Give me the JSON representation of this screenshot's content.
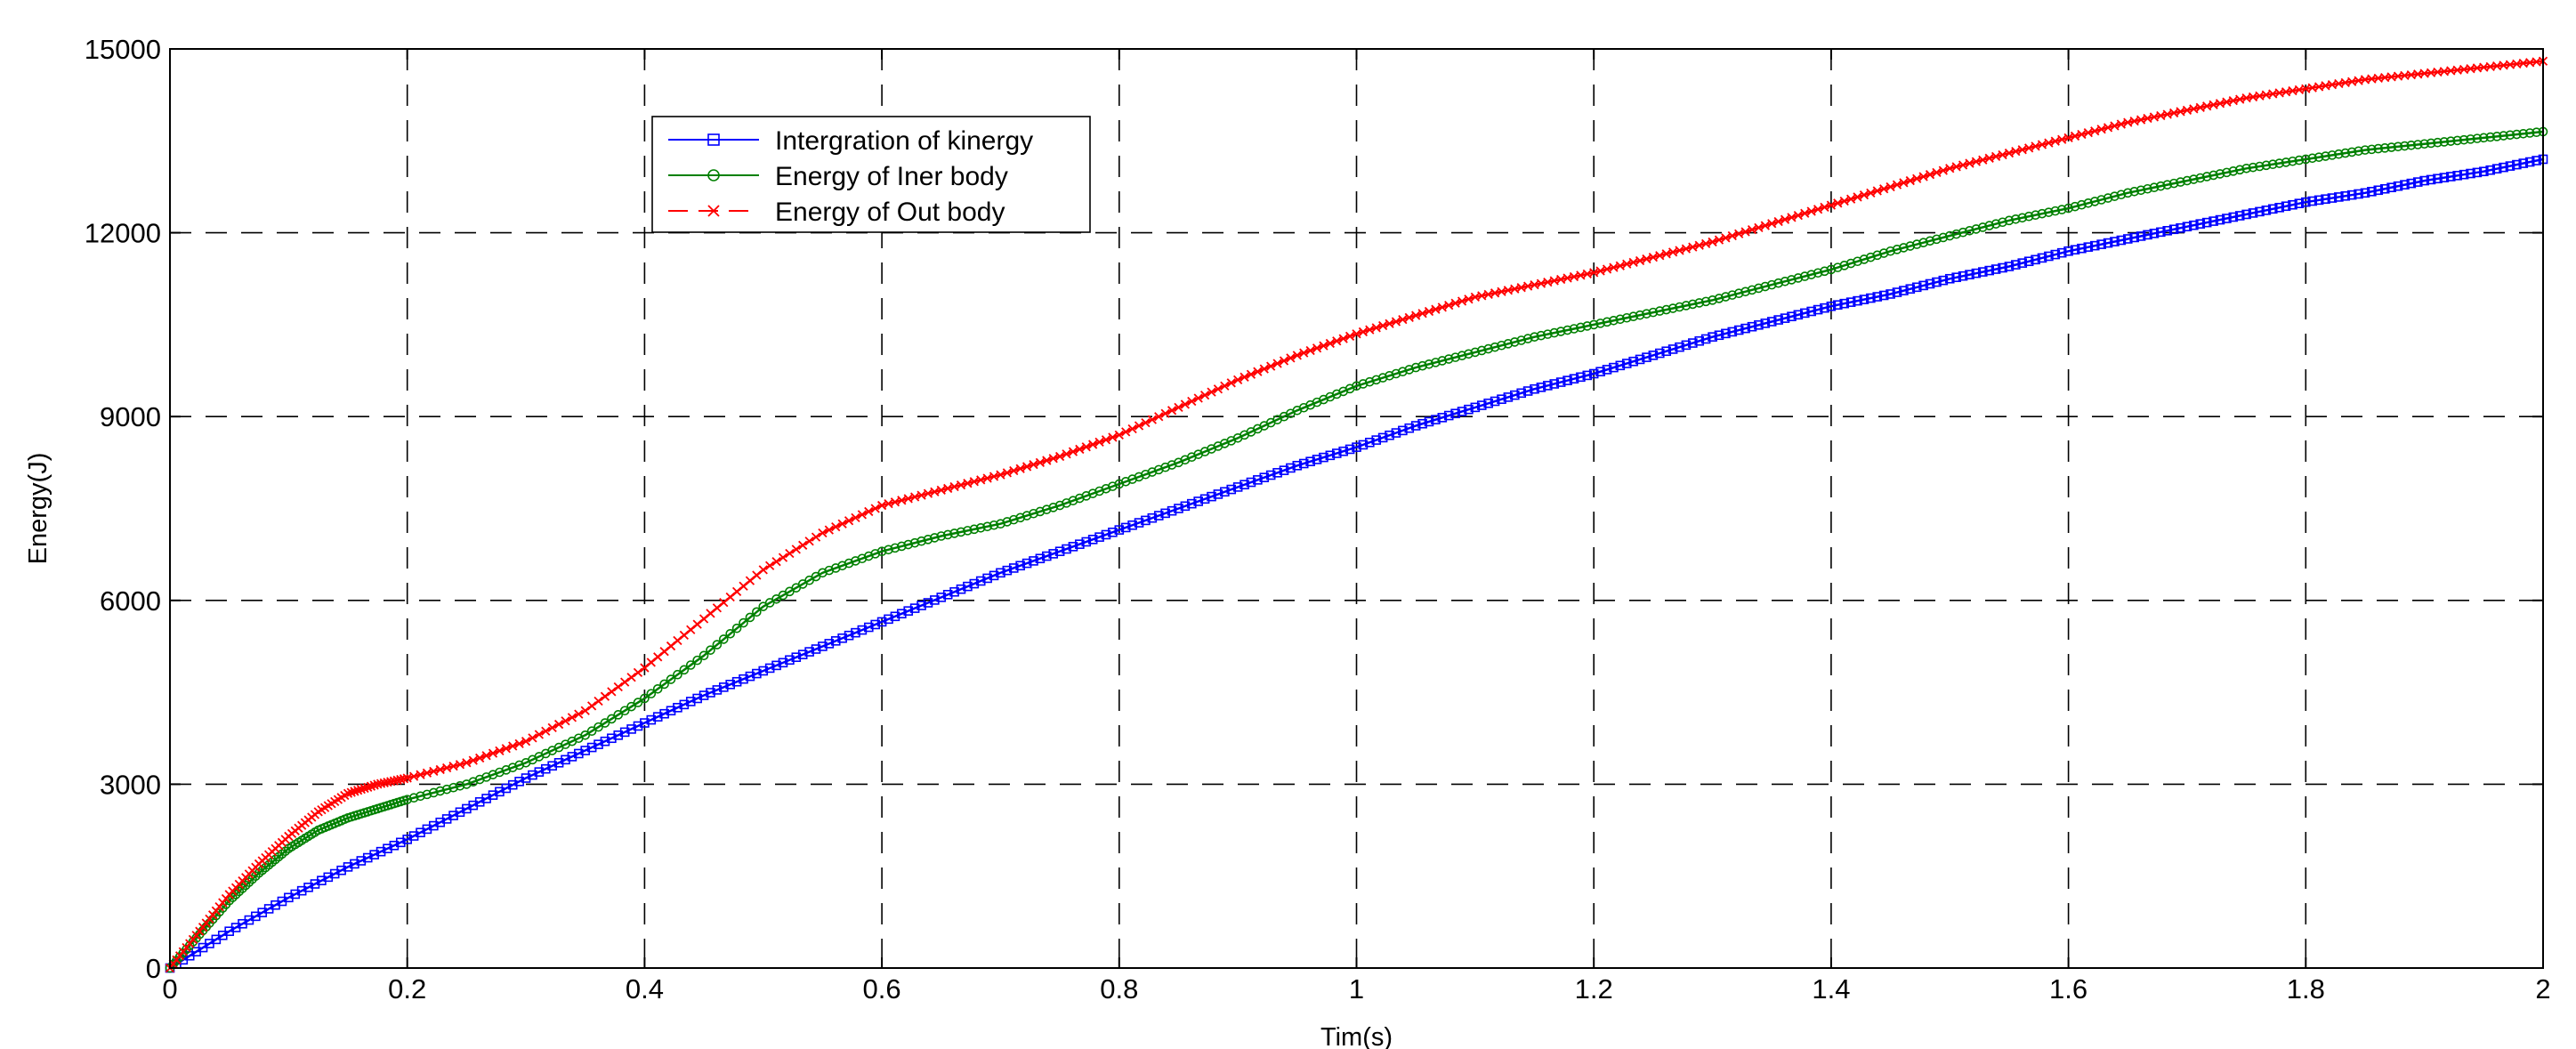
{
  "chart_data": {
    "type": "line",
    "title": "",
    "xlabel": "Tim(s)",
    "ylabel": "Energy(J)",
    "xlim": [
      0,
      2
    ],
    "ylim": [
      0,
      15000
    ],
    "x_ticks": [
      0,
      0.2,
      0.4,
      0.6,
      0.8,
      1,
      1.2,
      1.4,
      1.6,
      1.8,
      2
    ],
    "x_tick_labels": [
      "0",
      "0.2",
      "0.4",
      "0.6",
      "0.8",
      "1",
      "1.2",
      "1.4",
      "1.6",
      "1.8",
      "2"
    ],
    "y_ticks": [
      0,
      3000,
      6000,
      9000,
      12000,
      15000
    ],
    "y_tick_labels": [
      "0",
      "3000",
      "6000",
      "9000",
      "12000",
      "15000"
    ],
    "grid": true,
    "legend_position": "top-left",
    "series": [
      {
        "name": "Intergration of kinergy",
        "color": "#0000ff",
        "line_style": "solid",
        "marker": "square",
        "x": [
          0,
          0.05,
          0.1,
          0.15,
          0.2,
          0.25,
          0.3,
          0.35,
          0.4,
          0.45,
          0.5,
          0.55,
          0.6,
          0.65,
          0.7,
          0.75,
          0.8,
          0.85,
          0.9,
          0.95,
          1.0,
          1.05,
          1.1,
          1.15,
          1.2,
          1.25,
          1.3,
          1.35,
          1.4,
          1.45,
          1.5,
          1.55,
          1.6,
          1.65,
          1.7,
          1.75,
          1.8,
          1.85,
          1.9,
          1.95,
          2.0
        ],
        "y": [
          0,
          600,
          1150,
          1650,
          2100,
          2600,
          3100,
          3550,
          4000,
          4450,
          4850,
          5250,
          5650,
          6050,
          6450,
          6800,
          7150,
          7500,
          7850,
          8200,
          8500,
          8850,
          9150,
          9450,
          9700,
          10000,
          10300,
          10550,
          10800,
          11000,
          11250,
          11450,
          11700,
          11900,
          12100,
          12300,
          12500,
          12650,
          12850,
          13000,
          13200
        ]
      },
      {
        "name": "Energy of Iner body",
        "color": "#008000",
        "line_style": "solid",
        "marker": "circle",
        "x": [
          0,
          0.025,
          0.05,
          0.075,
          0.1,
          0.125,
          0.15,
          0.175,
          0.2,
          0.25,
          0.3,
          0.35,
          0.4,
          0.45,
          0.5,
          0.55,
          0.6,
          0.65,
          0.7,
          0.75,
          0.8,
          0.85,
          0.9,
          0.95,
          1.0,
          1.05,
          1.1,
          1.15,
          1.2,
          1.25,
          1.3,
          1.35,
          1.4,
          1.45,
          1.5,
          1.55,
          1.6,
          1.65,
          1.7,
          1.75,
          1.8,
          1.85,
          1.9,
          1.95,
          2.0
        ],
        "y": [
          0,
          550,
          1100,
          1550,
          1950,
          2250,
          2450,
          2600,
          2750,
          3000,
          3350,
          3800,
          4400,
          5100,
          5900,
          6450,
          6800,
          7050,
          7250,
          7550,
          7900,
          8250,
          8650,
          9100,
          9500,
          9800,
          10050,
          10300,
          10500,
          10700,
          10900,
          11150,
          11400,
          11700,
          11950,
          12200,
          12400,
          12650,
          12850,
          13050,
          13200,
          13350,
          13450,
          13550,
          13650
        ]
      },
      {
        "name": "Energy of Out body",
        "color": "#ff0000",
        "line_style": "dashed",
        "marker": "x",
        "x": [
          0,
          0.025,
          0.05,
          0.075,
          0.1,
          0.125,
          0.15,
          0.175,
          0.2,
          0.25,
          0.3,
          0.35,
          0.4,
          0.45,
          0.5,
          0.55,
          0.6,
          0.65,
          0.7,
          0.75,
          0.8,
          0.85,
          0.9,
          0.95,
          1.0,
          1.05,
          1.1,
          1.15,
          1.2,
          1.25,
          1.3,
          1.35,
          1.4,
          1.45,
          1.5,
          1.55,
          1.6,
          1.65,
          1.7,
          1.75,
          1.8,
          1.85,
          1.9,
          1.95,
          2.0
        ],
        "y": [
          0,
          600,
          1200,
          1700,
          2150,
          2550,
          2850,
          3000,
          3100,
          3350,
          3700,
          4200,
          4900,
          5700,
          6500,
          7100,
          7550,
          7800,
          8050,
          8350,
          8700,
          9150,
          9600,
          10000,
          10350,
          10650,
          10950,
          11150,
          11350,
          11600,
          11850,
          12150,
          12450,
          12750,
          13050,
          13300,
          13550,
          13800,
          14000,
          14200,
          14350,
          14500,
          14600,
          14700,
          14800
        ]
      }
    ]
  }
}
